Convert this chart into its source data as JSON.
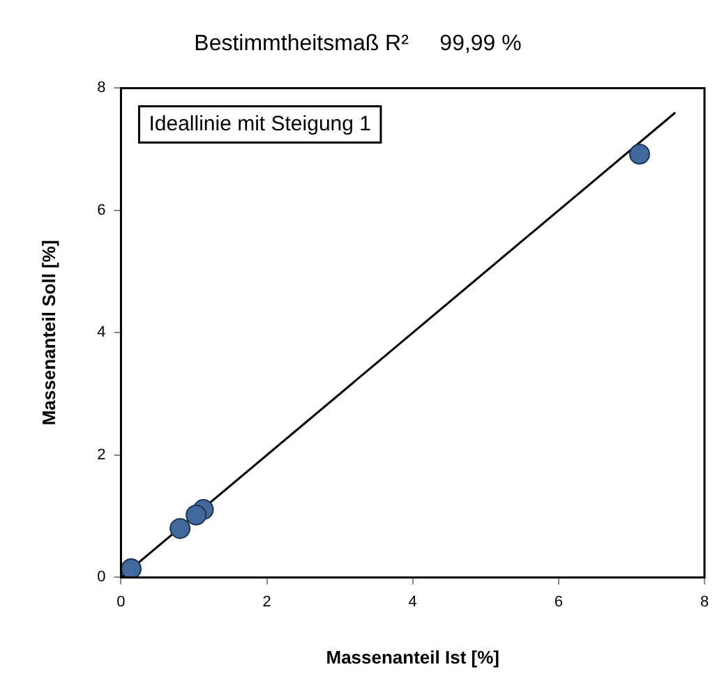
{
  "chart_data": {
    "type": "scatter",
    "title": "Bestimmtheitsmaß R²     99,99 %",
    "xlabel": "Massenanteil Ist [%]",
    "ylabel": "Massenanteil Soll [%]",
    "xlim": [
      0,
      8
    ],
    "xticks": [
      0,
      2,
      4,
      6,
      8
    ],
    "ylim": [
      0,
      8
    ],
    "yticks": [
      0,
      2,
      4,
      6,
      8
    ],
    "grid": false,
    "legend": false,
    "marker": "circle",
    "annotations": [
      "Ideallinie mit Steigung 1"
    ],
    "series": [
      {
        "color": "#41699e",
        "x": [
          7.11,
          1.13,
          1.03,
          0.81,
          0.14
        ],
        "values": [
          6.92,
          1.11,
          1.02,
          0.8,
          0.14
        ]
      },
      {
        "type": "line",
        "color": "#000000",
        "x": [
          0,
          7.6
        ],
        "values": [
          0,
          7.6
        ],
        "marker": "none",
        "line_style": "solid"
      }
    ]
  }
}
